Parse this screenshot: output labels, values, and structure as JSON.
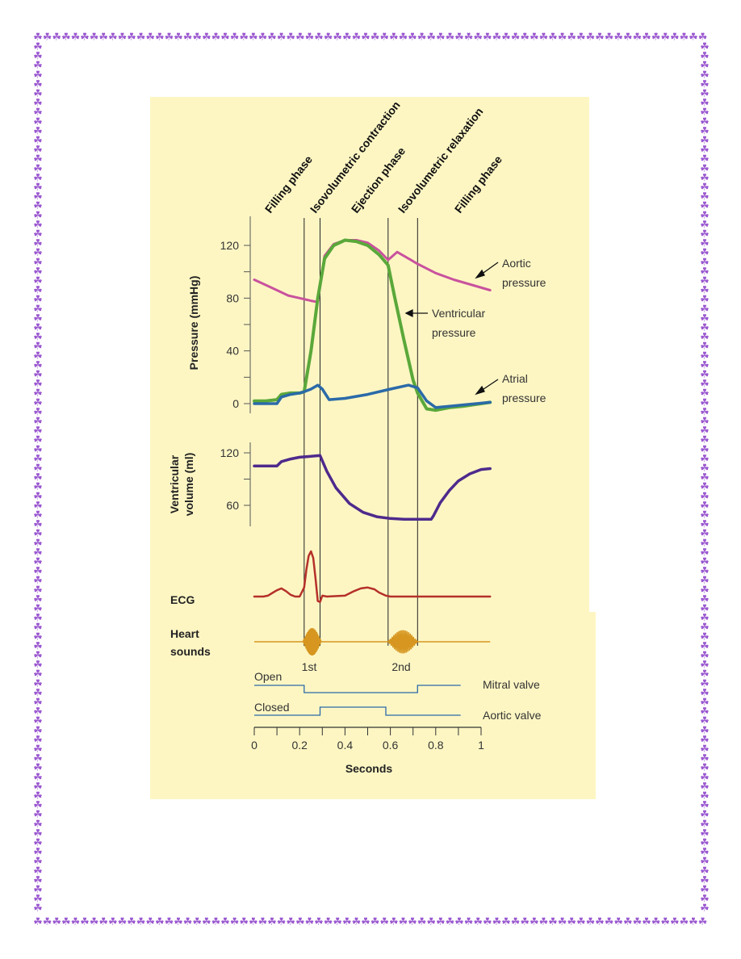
{
  "border": {
    "glyph": "☘",
    "color": "#9b59d0"
  },
  "chart_data": {
    "type": "line",
    "x_units": "Seconds",
    "phases": [
      {
        "label": "Filling phase"
      },
      {
        "label": "Isovolumetric contraction"
      },
      {
        "label": "Ejection phase"
      },
      {
        "label": "Isovolumetric relaxation"
      },
      {
        "label": "Filling phase"
      }
    ],
    "phase_boundaries": [
      0.22,
      0.29,
      0.59,
      0.72
    ],
    "pressure_panel": {
      "ylabel": "Pressure (mmHg)",
      "ylim": [
        0,
        128
      ],
      "yticks": [
        0,
        40,
        80,
        120
      ],
      "series": [
        {
          "name": "Aortic pressure",
          "color": "#c9529e",
          "x": [
            0,
            0.05,
            0.1,
            0.15,
            0.2,
            0.25,
            0.28,
            0.31,
            0.35,
            0.4,
            0.45,
            0.5,
            0.55,
            0.59,
            0.63,
            0.68,
            0.72,
            0.8,
            0.88,
            0.96,
            1.04
          ],
          "y": [
            94,
            90,
            86,
            82,
            80,
            78,
            77,
            112,
            121,
            124,
            124,
            122,
            116,
            109,
            115,
            110,
            106,
            99,
            94,
            90,
            86
          ]
        },
        {
          "name": "Ventricular pressure",
          "color": "#5aa83a",
          "x": [
            0,
            0.05,
            0.1,
            0.12,
            0.16,
            0.2,
            0.22,
            0.25,
            0.28,
            0.31,
            0.35,
            0.4,
            0.45,
            0.5,
            0.55,
            0.59,
            0.62,
            0.66,
            0.7,
            0.72,
            0.76,
            0.8,
            0.86,
            0.92,
            1.04
          ],
          "y": [
            2,
            2,
            3,
            7,
            8,
            8,
            9,
            40,
            80,
            110,
            120,
            124,
            123,
            120,
            113,
            105,
            80,
            48,
            18,
            8,
            -4,
            -5,
            -3,
            -2,
            1
          ]
        },
        {
          "name": "Atrial pressure",
          "color": "#2b6aa8",
          "x": [
            0,
            0.05,
            0.1,
            0.12,
            0.16,
            0.2,
            0.22,
            0.25,
            0.28,
            0.3,
            0.33,
            0.4,
            0.5,
            0.6,
            0.68,
            0.72,
            0.76,
            0.8,
            0.86,
            0.92,
            1.04
          ],
          "y": [
            0,
            0,
            0,
            5,
            7,
            8,
            9,
            11,
            14,
            11,
            3,
            4,
            7,
            11,
            14,
            12,
            2,
            -3,
            -2,
            -1,
            1
          ]
        }
      ],
      "annotations": [
        {
          "series": "Aortic pressure",
          "lines": [
            "Aortic",
            "pressure"
          ]
        },
        {
          "series": "Ventricular pressure",
          "lines": [
            "Ventricular",
            "pressure"
          ]
        },
        {
          "series": "Atrial pressure",
          "lines": [
            "Atrial",
            "pressure"
          ]
        }
      ]
    },
    "volume_panel": {
      "ylabel": [
        "Ventricular",
        "volume (ml)"
      ],
      "ylim": [
        40,
        128
      ],
      "yticks": [
        60,
        120
      ],
      "series": [
        {
          "name": "Ventricular volume",
          "color": "#4e2a8c",
          "x": [
            0,
            0.1,
            0.12,
            0.16,
            0.2,
            0.25,
            0.29,
            0.32,
            0.36,
            0.42,
            0.48,
            0.54,
            0.6,
            0.66,
            0.72,
            0.78,
            0.79,
            0.82,
            0.86,
            0.9,
            0.95,
            1.0,
            1.04
          ],
          "y": [
            105,
            105,
            110,
            113,
            115,
            116,
            117,
            99,
            80,
            62,
            52,
            47,
            45,
            44,
            44,
            44,
            48,
            63,
            77,
            88,
            96,
            101,
            102
          ]
        }
      ]
    },
    "ecg": {
      "label": "ECG",
      "color": "#b5302a",
      "x": [
        0,
        0.04,
        0.06,
        0.08,
        0.1,
        0.12,
        0.14,
        0.16,
        0.18,
        0.2,
        0.22,
        0.23,
        0.24,
        0.25,
        0.26,
        0.27,
        0.28,
        0.29,
        0.3,
        0.32,
        0.4,
        0.44,
        0.47,
        0.5,
        0.53,
        0.55,
        0.58,
        0.6,
        0.7,
        0.8,
        1.04
      ],
      "y": [
        0,
        0,
        0.02,
        0.08,
        0.14,
        0.18,
        0.12,
        0.04,
        0,
        0,
        0.2,
        0.6,
        0.9,
        1.0,
        0.85,
        0.4,
        -0.1,
        -0.12,
        0.02,
        0,
        0.02,
        0.12,
        0.18,
        0.2,
        0.16,
        0.09,
        0.02,
        0,
        0,
        0,
        0
      ]
    },
    "heart_sounds": {
      "label": [
        "Heart",
        "sounds"
      ],
      "color": "#d6961f",
      "bursts": [
        {
          "label": "1st",
          "center": 0.255,
          "width": 0.08
        },
        {
          "label": "2nd",
          "center": 0.655,
          "width": 0.13
        }
      ]
    },
    "valves": {
      "color": "#2b6aa8",
      "state_labels": [
        "Open",
        "Closed"
      ],
      "mitral": {
        "label": "Mitral valve",
        "open_until": 0.22,
        "open_from": 0.72,
        "end": 0.91
      },
      "aortic": {
        "label": "Aortic valve",
        "open_from": 0.29,
        "open_until": 0.58,
        "end": 0.91
      }
    },
    "x_axis": {
      "label": "Seconds",
      "ticks": [
        "0",
        "0.2",
        "0.4",
        "0.6",
        "0.8",
        "1"
      ],
      "tick_values": [
        0,
        0.2,
        0.4,
        0.6,
        0.8,
        1.0
      ],
      "minor_step": 0.1
    }
  }
}
